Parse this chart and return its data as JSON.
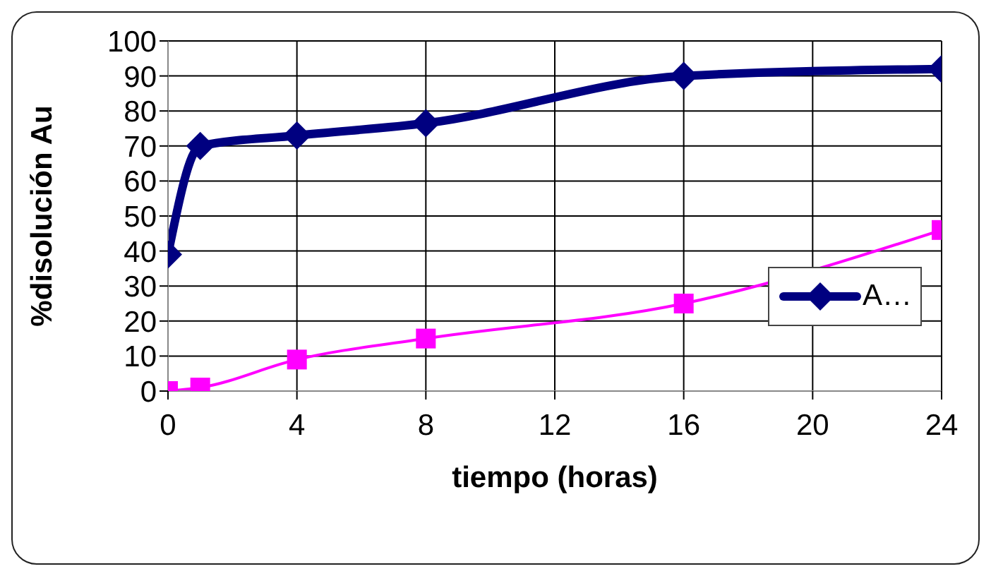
{
  "chart_data": {
    "type": "line",
    "xlabel": "tiempo (horas)",
    "ylabel": "%disolución Au",
    "x": [
      0,
      1,
      4,
      8,
      16,
      24
    ],
    "series": [
      {
        "name": "A…",
        "color": "#000080",
        "marker": "diamond",
        "values": [
          39,
          70,
          73,
          76.5,
          90,
          92
        ]
      },
      {
        "color": "#ff00ff",
        "marker": "square",
        "values": [
          0,
          1,
          9,
          15,
          25,
          46
        ]
      }
    ],
    "xlim": [
      0,
      24
    ],
    "xticks": [
      0,
      4,
      8,
      12,
      16,
      20,
      24
    ],
    "ylim": [
      0,
      100
    ],
    "yticks": [
      0,
      10,
      20,
      30,
      40,
      50,
      60,
      70,
      80,
      90,
      100
    ],
    "grid": true,
    "legend": "right"
  }
}
